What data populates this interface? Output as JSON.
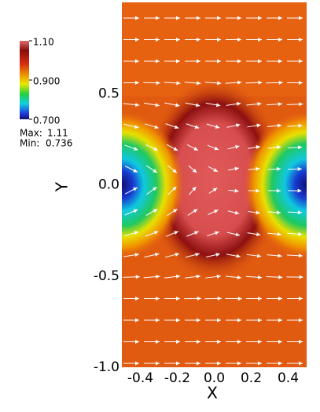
{
  "chart_data": {
    "type": "heatmap",
    "xlabel": "X",
    "ylabel": "Y",
    "xlim": [
      -0.5,
      0.5
    ],
    "ylim": [
      -1.0,
      1.0
    ],
    "xticks": [
      -0.4,
      -0.2,
      {
        "value": 0,
        "label": "0.0"
      },
      0.2,
      0.4
    ],
    "yticks": [
      {
        "value": -1,
        "label": "-1.0"
      },
      -0.5,
      {
        "value": 0,
        "label": "0.0"
      },
      0.5
    ],
    "colorbar": {
      "lim": [
        0.7,
        1.1
      ],
      "ticks": [
        {
          "value": 0.7,
          "label": "0.700"
        },
        {
          "value": 0.9,
          "label": "0.900"
        },
        {
          "value": 1.1,
          "label": "1.10"
        }
      ],
      "max_label": "Max:",
      "max": 1.11,
      "min_label": "Min:",
      "min": 0.736
    }
  }
}
